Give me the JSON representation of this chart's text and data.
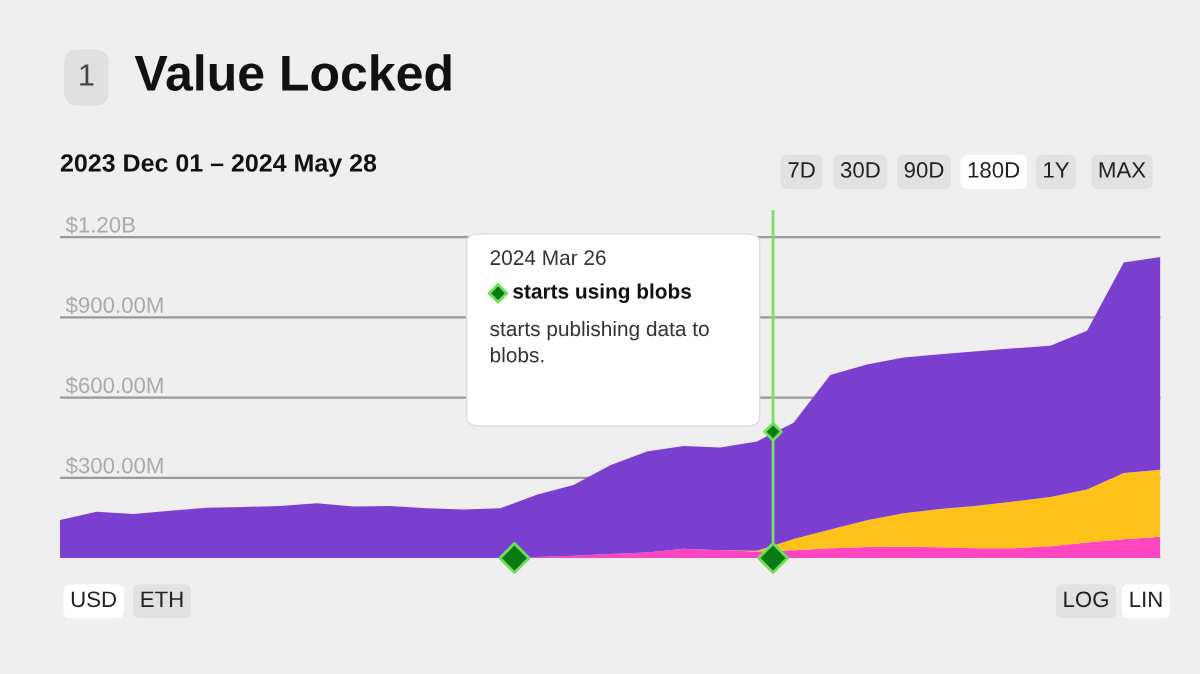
{
  "chart_data": {
    "type": "area",
    "stacked": true,
    "title": "Value Locked",
    "subtitle": "2023 Dec 01 – 2024 May 28",
    "categories": [
      null,
      null,
      null,
      null,
      null,
      null,
      null,
      null,
      null,
      null,
      null,
      null,
      null,
      null,
      null,
      null,
      null,
      null,
      null,
      null,
      null,
      null,
      null,
      null,
      null,
      null,
      null,
      null,
      null,
      null,
      null
    ],
    "series": [
      {
        "color": "#ff46c0",
        "values": [
          0,
          0,
          0,
          0,
          0,
          0,
          0,
          0,
          0,
          0,
          0,
          0,
          0,
          4000000,
          9000000,
          15000000,
          21000000,
          35000000,
          29000000,
          25000000,
          29000000,
          37000000,
          41000000,
          42000000,
          40000000,
          37000000,
          37000000,
          44000000,
          58000000,
          70000000,
          80000000
        ]
      },
      {
        "color": "#ffc21a",
        "values": [
          0,
          0,
          0,
          0,
          0,
          0,
          0,
          0,
          0,
          0,
          0,
          0,
          0,
          0,
          0,
          0,
          0,
          0,
          0,
          2000000,
          42000000,
          70000000,
          100000000,
          126000000,
          143000000,
          159000000,
          174000000,
          184000000,
          198000000,
          248000000,
          250000000
        ]
      },
      {
        "color": "#7b3fd0",
        "values": [
          142000000,
          173000000,
          165000000,
          177000000,
          188000000,
          191000000,
          195000000,
          205000000,
          193000000,
          195000000,
          186000000,
          182000000,
          186000000,
          233000000,
          264000000,
          332000000,
          377000000,
          384000000,
          384000000,
          409000000,
          435000000,
          577000000,
          583000000,
          582000000,
          579000000,
          577000000,
          573000000,
          566000000,
          594000000,
          787000000,
          795000000
        ]
      }
    ],
    "ylim": [
      0,
      1300000000
    ],
    "yticks": [
      {
        "value": 0,
        "label": null
      },
      {
        "value": 300000000,
        "label": "$300.00M"
      },
      {
        "value": 600000000,
        "label": "$600.00M"
      },
      {
        "value": 900000000,
        "label": "$900.00M"
      },
      {
        "value": 1200000000,
        "label": "$1.20B"
      }
    ],
    "grid": "y",
    "tick_labels": "y",
    "annotations": [
      "1",
      "7D",
      "30D",
      "90D",
      "180D",
      "1Y",
      "MAX",
      "USD",
      "ETH",
      "LOG",
      "LIN",
      "2024 Mar 26",
      "starts using blobs",
      "starts publishing data to\nblobs."
    ]
  }
}
